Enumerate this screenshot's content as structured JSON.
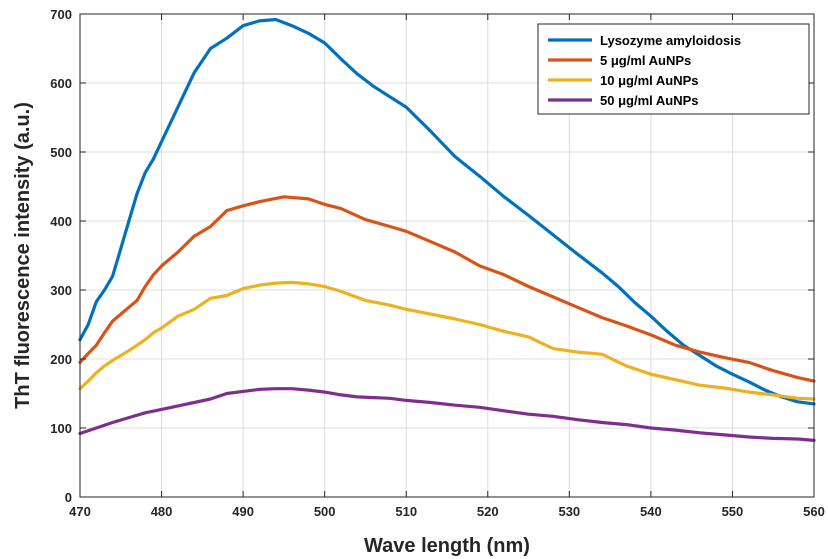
{
  "chart_data": {
    "type": "line",
    "title": "",
    "xlabel": "Wave length (nm)",
    "ylabel": "ThT fluorescence intensity (a.u.)",
    "xlim": [
      470,
      560
    ],
    "ylim": [
      0,
      700
    ],
    "xticks": [
      470,
      480,
      490,
      500,
      510,
      520,
      530,
      540,
      550,
      560
    ],
    "yticks": [
      0,
      100,
      200,
      300,
      400,
      500,
      600,
      700
    ],
    "grid": true,
    "legend_position": "top-right",
    "series": [
      {
        "name": "Lysozyme amyloidosis",
        "color": "#0072BD",
        "x": [
          470,
          471,
          472,
          473,
          474,
          475,
          476,
          477,
          478,
          479,
          480,
          482,
          484,
          486,
          488,
          490,
          492,
          494,
          496,
          498,
          500,
          502,
          504,
          506,
          508,
          510,
          513,
          516,
          519,
          522,
          525,
          528,
          531,
          534,
          536,
          538,
          540,
          542,
          544,
          546,
          548,
          550,
          552,
          554,
          556,
          558,
          560
        ],
        "y": [
          228,
          250,
          283,
          300,
          320,
          360,
          400,
          440,
          470,
          490,
          515,
          565,
          615,
          650,
          665,
          683,
          690,
          692,
          683,
          672,
          658,
          635,
          613,
          595,
          580,
          565,
          530,
          493,
          465,
          435,
          408,
          380,
          352,
          325,
          305,
          282,
          262,
          240,
          220,
          205,
          190,
          178,
          167,
          155,
          145,
          138,
          135
        ]
      },
      {
        "name": "5 μg/ml AuNPs",
        "color": "#D95319",
        "x": [
          470,
          471,
          472,
          473,
          474,
          475,
          476,
          477,
          478,
          479,
          480,
          482,
          484,
          486,
          488,
          490,
          492,
          495,
          498,
          500,
          502,
          505,
          508,
          510,
          513,
          516,
          519,
          522,
          525,
          528,
          531,
          534,
          537,
          540,
          543,
          546,
          549,
          552,
          555,
          558,
          560
        ],
        "y": [
          195,
          208,
          220,
          238,
          255,
          265,
          275,
          285,
          305,
          322,
          335,
          355,
          378,
          392,
          415,
          422,
          428,
          435,
          432,
          424,
          418,
          402,
          392,
          385,
          370,
          355,
          335,
          322,
          305,
          290,
          275,
          260,
          248,
          235,
          220,
          210,
          202,
          195,
          183,
          173,
          168
        ]
      },
      {
        "name": "10 μg/ml AuNPs",
        "color": "#EDB120",
        "x": [
          470,
          471,
          472,
          473,
          474,
          475,
          476,
          477,
          478,
          479,
          480,
          482,
          484,
          486,
          488,
          490,
          492,
          494,
          496,
          498,
          500,
          502,
          505,
          508,
          510,
          513,
          516,
          519,
          522,
          525,
          528,
          531,
          534,
          537,
          540,
          543,
          546,
          549,
          552,
          555,
          558,
          560
        ],
        "y": [
          157,
          168,
          180,
          190,
          198,
          205,
          212,
          220,
          228,
          238,
          245,
          262,
          272,
          288,
          292,
          302,
          307,
          310,
          311,
          309,
          305,
          298,
          285,
          278,
          272,
          265,
          258,
          250,
          240,
          232,
          215,
          210,
          207,
          190,
          178,
          170,
          162,
          158,
          152,
          148,
          143,
          142
        ]
      },
      {
        "name": "50 μg/ml AuNPs",
        "color": "#7E2F8E",
        "x": [
          470,
          472,
          474,
          476,
          478,
          480,
          482,
          484,
          486,
          488,
          490,
          492,
          494,
          496,
          498,
          500,
          502,
          504,
          506,
          508,
          510,
          513,
          516,
          519,
          522,
          525,
          528,
          531,
          534,
          537,
          540,
          543,
          546,
          549,
          552,
          555,
          558,
          560
        ],
        "y": [
          92,
          100,
          108,
          115,
          122,
          127,
          132,
          137,
          142,
          150,
          153,
          156,
          157,
          157,
          155,
          152,
          148,
          145,
          144,
          143,
          140,
          137,
          133,
          130,
          125,
          120,
          117,
          112,
          108,
          105,
          100,
          97,
          93,
          90,
          87,
          85,
          84,
          82
        ]
      }
    ]
  }
}
